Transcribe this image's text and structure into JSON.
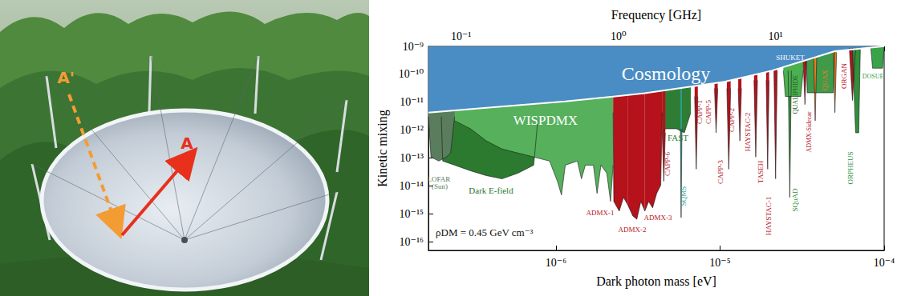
{
  "photo": {
    "labels": [
      "A'",
      "A"
    ]
  },
  "chart_data": {
    "type": "area",
    "xlabel": "Dark photon mass [eV]",
    "ylabel": "Kinetic mixing",
    "x2label": "Frequency [GHz]",
    "annotation": "ρDM = 0.45 GeV cm⁻³",
    "log": true,
    "grid": false,
    "xlim": [
      1.67e-07,
      0.0001
    ],
    "xticks": [
      {
        "value": 1e-06,
        "label": "10⁻⁶"
      },
      {
        "value": 1e-05,
        "label": "10⁻⁵"
      },
      {
        "value": 0.0001,
        "label": "10⁻⁴"
      }
    ],
    "x2lim": [
      0.062,
      49
    ],
    "x2ticks": [
      {
        "value": 0.1,
        "label": "10⁻¹"
      },
      {
        "value": 1,
        "label": "10⁰"
      },
      {
        "value": 10,
        "label": "10¹"
      }
    ],
    "ylim": [
      5e-17,
      1e-09
    ],
    "yticks": [
      {
        "value": 1e-16,
        "label": "10⁻¹⁶"
      },
      {
        "value": 1e-15,
        "label": "10⁻¹⁵"
      },
      {
        "value": 1e-14,
        "label": "10⁻¹⁴"
      },
      {
        "value": 1e-13,
        "label": "10⁻¹³"
      },
      {
        "value": 1e-12,
        "label": "10⁻¹²"
      },
      {
        "value": 1e-11,
        "label": "10⁻¹¹"
      },
      {
        "value": 1e-10,
        "label": "10⁻¹⁰"
      },
      {
        "value": 1e-09,
        "label": "10⁻⁹"
      }
    ],
    "series": [
      {
        "name": "Dark E-field",
        "color": "#2b7a2f",
        "x": [
          2e-07,
          2.04e-07,
          2.41e-07,
          3.01e-07,
          3.76e-07,
          4.69e-07,
          5.86e-07,
          7.32e-07,
          7.74e-07
        ],
        "values": [
          3.06e-12,
          7.87e-14,
          5.64e-14,
          3.54e-14,
          2.38e-14,
          1.82e-14,
          2.9e-14,
          5.64e-14,
          2.19e-12
        ]
      },
      {
        "name": "LOFAR (Sun)",
        "color": "#5a7d5e",
        "x": [
          1.67e-07,
          1.73e-07,
          1.93e-07,
          2.15e-07,
          2.28e-07,
          2.41e-07
        ],
        "values": [
          3.06e-12,
          1.1e-13,
          7.87e-14,
          1.1e-13,
          1.53e-13,
          3.06e-12
        ]
      },
      {
        "name": "WISPDMX",
        "color": "#56b05c",
        "x": [
          2.41e-07,
          3.01e-07,
          3.76e-07,
          4.69e-07,
          5.86e-07,
          7.32e-07,
          9.14e-07,
          1.02e-06,
          1.08e-06,
          1.14e-06,
          1.35e-06,
          1.43e-06,
          1.51e-06,
          1.69e-06,
          1.78e-06,
          1.88e-06,
          2.04e-06,
          2.15e-06,
          2.23e-06
        ],
        "values": [
          2.19e-12,
          1.13e-12,
          4.15e-13,
          2.13e-13,
          1.53e-13,
          1.1e-13,
          7.87e-14,
          1.49e-14,
          4.81e-15,
          5.64e-14,
          7.87e-14,
          1.82e-14,
          5.64e-14,
          5.64e-14,
          5.49e-15,
          5.64e-14,
          2.9e-14,
          2.82e-15,
          5.64e-14
        ]
      },
      {
        "name": "ADMX-1",
        "color": "#b5121b",
        "x": [
          2.23e-06,
          2.25e-06,
          2.43e-06,
          2.58e-06,
          2.75e-06
        ],
        "values": [
          4.27e-12,
          2.82e-15,
          1.27e-15,
          3.94e-15,
          2.02e-15
        ]
      },
      {
        "name": "ADMX-2",
        "color": "#b5121b",
        "x": [
          2.75e-06,
          2.94e-06,
          3.11e-06,
          3.29e-06,
          3.48e-06
        ],
        "values": [
          2.02e-15,
          8.53e-16,
          6.53e-16,
          2.82e-15,
          1.27e-15
        ]
      },
      {
        "name": "ADMX-3",
        "color": "#b5121b",
        "x": [
          3.48e-06,
          3.67e-06,
          3.88e-06,
          4.11e-06,
          4.35e-06,
          4.44e-06
        ],
        "values": [
          1.27e-15,
          2.82e-15,
          1.66e-15,
          5.49e-15,
          1.07e-14,
          4.27e-12
        ]
      },
      {
        "name": "FAST",
        "color": "#2f7d34",
        "x": [
          4.44e-06,
          4.64e-06,
          5.42e-06,
          6.06e-06,
          6.63e-06
        ],
        "values": [
          8.09e-13,
          1.13e-12,
          1.13e-12,
          8.09e-13,
          4.27e-12
        ]
      },
      {
        "name": "CAPP-6",
        "color": "#b5121b",
        "x": [
          4.44e-06,
          4.54e-06,
          4.64e-06
        ],
        "values": [
          8.09e-13,
          1.49e-14,
          8.09e-13
        ]
      },
      {
        "name": "SQMS",
        "color": "#2a9d8f",
        "x": [
          5.73e-06,
          5.79e-06,
          5.86e-06
        ],
        "values": [
          1.13e-12,
          7.46e-16,
          1.13e-12
        ]
      },
      {
        "name": "CAPP-1",
        "color": "#b5121b",
        "x": [
          7e-06,
          7.16e-06,
          7.32e-06
        ],
        "values": [
          1.61e-11,
          4.04e-14,
          1.61e-11
        ]
      },
      {
        "name": "CAPP-5",
        "color": "#b5121b",
        "x": [
          9.25e-06,
          9.46e-06,
          9.68e-06
        ],
        "values": [
          3.14e-11,
          8.09e-13,
          3.14e-11
        ]
      },
      {
        "name": "CAPP-3",
        "color": "#b5121b",
        "x": [
          1.1e-05,
          1.13e-05,
          1.16e-05
        ],
        "values": [
          3.14e-11,
          4.04e-14,
          3.14e-11
        ]
      },
      {
        "name": "CAPP-2",
        "color": "#b5121b",
        "x": [
          1.29e-05,
          1.32e-05,
          1.35e-05
        ],
        "values": [
          3.14e-11,
          4.15e-13,
          3.14e-11
        ]
      },
      {
        "name": "HAYSTAC-2",
        "color": "#b5121b",
        "x": [
          1.61e-05,
          1.65e-05,
          1.69e-05
        ],
        "values": [
          6.11e-11,
          1.1e-13,
          6.11e-11
        ]
      },
      {
        "name": "TASEH",
        "color": "#b5121b",
        "x": [
          1.91e-05,
          1.95e-05,
          1.99e-05
        ],
        "values": [
          6.11e-11,
          4.04e-14,
          6.11e-11
        ]
      },
      {
        "name": "HAYSTAC-1",
        "color": "#b5121b",
        "x": [
          2.13e-05,
          2.18e-05,
          2.23e-05
        ],
        "values": [
          1.35e-10,
          1.82e-14,
          1.35e-10
        ]
      },
      {
        "name": "SQuAD",
        "color": "#2f8f3a",
        "x": [
          2.6e-05,
          2.66e-05,
          2.72e-05
        ],
        "values": [
          1.35e-10,
          3.94e-15,
          1.35e-10
        ]
      },
      {
        "name": "QUALIPHIDE",
        "color": "#4caf50",
        "x": [
          2.43e-05,
          2.5e-05,
          3.1e-05,
          3.21e-05
        ],
        "values": [
          1.35e-10,
          1.61e-11,
          1.61e-11,
          1.35e-10
        ]
      },
      {
        "name": "SHUKET",
        "color": "#3f9a4a",
        "x": [
          3.36e-05,
          3.4e-05,
          4.9e-05,
          5e-05
        ],
        "values": [
          3e-10,
          2.19e-11,
          2.19e-11,
          6.7e-10
        ]
      },
      {
        "name": "ADMX-Sidecar",
        "color": "#b5121b",
        "x": [
          3.21e-05,
          3.29e-05,
          3.36e-05
        ],
        "values": [
          3e-10,
          8.3e-12,
          3e-10
        ]
      },
      {
        "name": "QUAX",
        "color": "#e67e22",
        "x": [
          3.72e-05,
          3.8e-05,
          3.88e-05,
          4.4e-05,
          4.91e-05,
          5.01e-05,
          5.13e-05
        ],
        "values": [
          4e-10,
          2.19e-12,
          4e-10,
          null,
          6e-10,
          4.27e-12,
          6e-10
        ]
      },
      {
        "name": "ORGAN",
        "color": "#b5121b",
        "x": [
          6.13e-05,
          6.41e-05,
          6.7e-05
        ],
        "values": [
          9e-10,
          1.16e-11,
          9e-10
        ]
      },
      {
        "name": "ORPHEUS",
        "color": "#2f8f3a",
        "x": [
          6.41e-05,
          6.7e-05,
          7e-05,
          7.16e-05
        ],
        "values": [
          9e-10,
          8.09e-13,
          8.09e-13,
          9e-10
        ]
      },
      {
        "name": "DOSUE",
        "color": "#3aa34a",
        "x": [
          8.28e-05,
          8.5e-05,
          9.78e-05,
          0.0001
        ],
        "values": [
          1e-09,
          1.66e-10,
          1.66e-10,
          1e-09
        ]
      },
      {
        "name": "Cosmology",
        "color": "#4a8cc4",
        "x": [
          1.67e-07,
          3.76e-07,
          1.14e-06,
          3.48e-06,
          1.06e-05,
          2.06e-05,
          3.21e-05,
          5e-05,
          9.78e-05,
          0.0001
        ],
        "values": [
          4.27e-12,
          6.3e-12,
          1.07e-11,
          2.1e-11,
          5.4e-11,
          1.35e-10,
          3e-10,
          6.7e-10,
          1e-09,
          1e-09
        ]
      }
    ]
  }
}
